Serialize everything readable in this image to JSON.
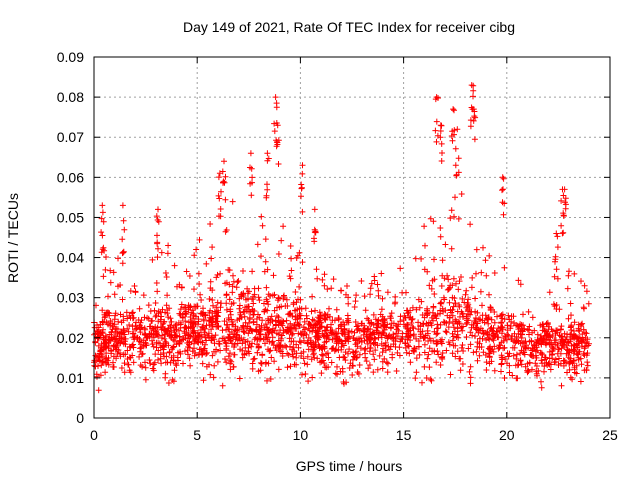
{
  "chart_data": {
    "type": "scatter",
    "title": "Day 149 of 2021, Rate Of TEC Index for receiver cibg",
    "xlabel": "GPS time / hours",
    "ylabel": "ROTI / TECUs",
    "xlim": [
      0,
      25
    ],
    "ylim": [
      0,
      0.09
    ],
    "x_ticks": [
      "0",
      "5",
      "10",
      "15",
      "20",
      "25"
    ],
    "y_ticks": [
      "0",
      "0.01",
      "0.02",
      "0.03",
      "0.04",
      "0.05",
      "0.06",
      "0.07",
      "0.08",
      "0.09"
    ],
    "x_tick_values": [
      0,
      5,
      10,
      15,
      20,
      25
    ],
    "y_tick_values": [
      0,
      0.01,
      0.02,
      0.03,
      0.04,
      0.05,
      0.06,
      0.07,
      0.08,
      0.09
    ],
    "grid": true,
    "marker": "plus",
    "color": "#ff0000",
    "data_x_range": [
      0,
      24
    ],
    "envelope": {
      "x": [
        0,
        1,
        2,
        3,
        4,
        5,
        6,
        7,
        8,
        9,
        10,
        11,
        12,
        13,
        14,
        15,
        16,
        17,
        18,
        19,
        20,
        21,
        22,
        23,
        24
      ],
      "low": [
        0.006,
        0.006,
        0.006,
        0.005,
        0.006,
        0.007,
        0.006,
        0.006,
        0.007,
        0.007,
        0.006,
        0.007,
        0.006,
        0.006,
        0.007,
        0.007,
        0.006,
        0.005,
        0.007,
        0.007,
        0.006,
        0.007,
        0.006,
        0.006,
        0.007
      ],
      "typical": [
        0.018,
        0.019,
        0.02,
        0.02,
        0.02,
        0.021,
        0.022,
        0.022,
        0.022,
        0.022,
        0.021,
        0.02,
        0.019,
        0.019,
        0.02,
        0.02,
        0.022,
        0.024,
        0.023,
        0.021,
        0.019,
        0.018,
        0.018,
        0.018,
        0.018
      ],
      "high": [
        0.045,
        0.04,
        0.04,
        0.045,
        0.042,
        0.045,
        0.055,
        0.058,
        0.056,
        0.05,
        0.048,
        0.04,
        0.036,
        0.036,
        0.038,
        0.038,
        0.048,
        0.06,
        0.055,
        0.042,
        0.038,
        0.032,
        0.035,
        0.038,
        0.032
      ]
    },
    "peaks": [
      {
        "x": 0.4,
        "y": 0.053
      },
      {
        "x": 1.4,
        "y": 0.053
      },
      {
        "x": 3.1,
        "y": 0.052
      },
      {
        "x": 6.1,
        "y": 0.061
      },
      {
        "x": 6.3,
        "y": 0.064
      },
      {
        "x": 7.6,
        "y": 0.066
      },
      {
        "x": 8.4,
        "y": 0.066
      },
      {
        "x": 8.8,
        "y": 0.08
      },
      {
        "x": 8.9,
        "y": 0.073
      },
      {
        "x": 10.1,
        "y": 0.063
      },
      {
        "x": 10.7,
        "y": 0.052
      },
      {
        "x": 16.6,
        "y": 0.08
      },
      {
        "x": 16.8,
        "y": 0.073
      },
      {
        "x": 17.4,
        "y": 0.077
      },
      {
        "x": 17.6,
        "y": 0.072
      },
      {
        "x": 18.3,
        "y": 0.083
      },
      {
        "x": 18.4,
        "y": 0.077
      },
      {
        "x": 19.8,
        "y": 0.06
      },
      {
        "x": 22.7,
        "y": 0.057
      },
      {
        "x": 22.8,
        "y": 0.057
      },
      {
        "x": 22.4,
        "y": 0.046
      }
    ]
  }
}
